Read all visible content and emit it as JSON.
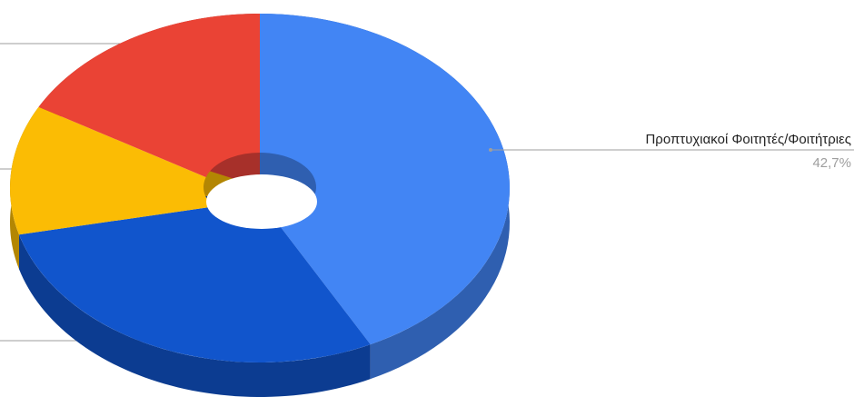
{
  "chart_data": {
    "type": "pie",
    "categories": [
      "Προπτυχιακοί Φοιτητές/Φοιτήτριες",
      null,
      null,
      null
    ],
    "values": [
      42.7,
      28,
      12,
      17.3
    ],
    "value_labels": [
      "42,7%",
      null,
      null,
      null
    ],
    "colors": [
      "#4285f4",
      "#1155cc",
      "#fbbc04",
      "#ea4335"
    ],
    "side_colors": [
      "#2f5fb0",
      "#0c3c91",
      "#b38603",
      "#a7302a"
    ]
  }
}
